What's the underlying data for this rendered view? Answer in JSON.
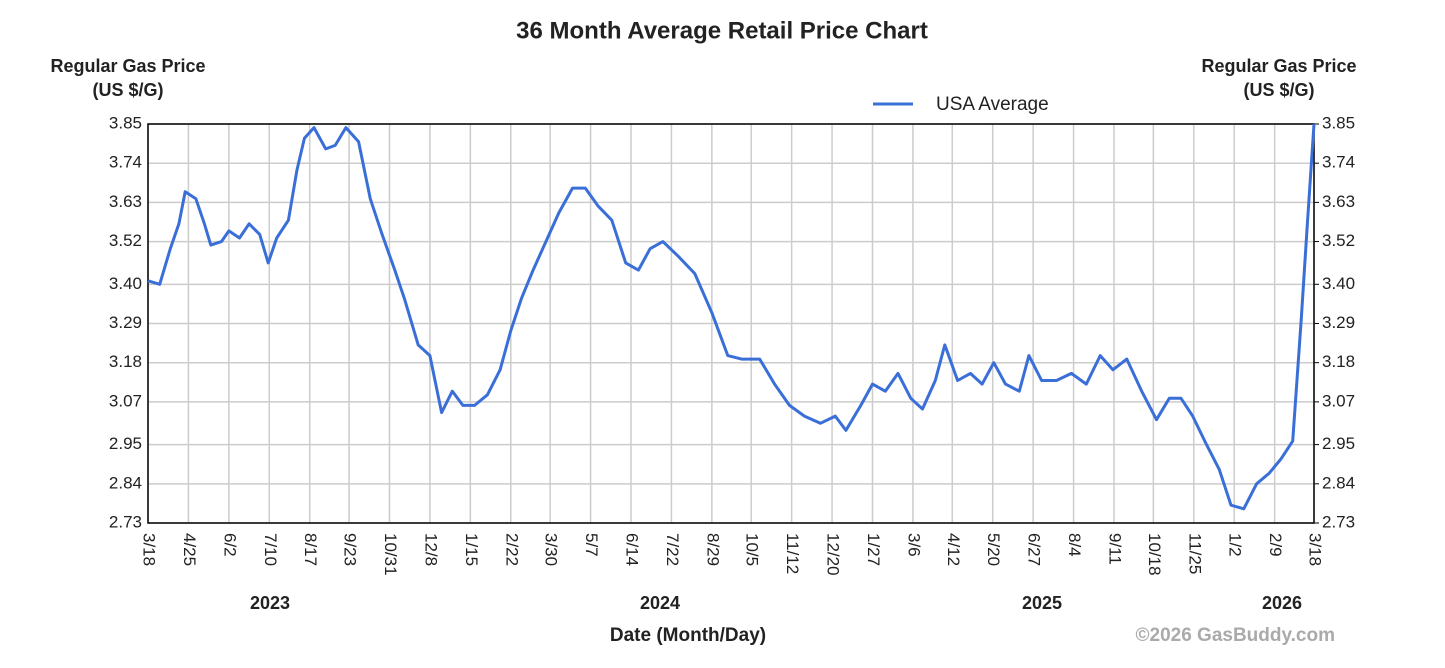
{
  "chart_data": {
    "type": "line",
    "title": "36 Month Average Retail Price Chart",
    "y_label": "Regular Gas Price (US $/G)",
    "y2_label": "Regular Gas Price (US $/G)",
    "x_label": "Date (Month/Day)",
    "watermark": "©2026 GasBuddy.com",
    "legend": "top",
    "grid": true,
    "year_labels": [
      "2023",
      "2024",
      "2025",
      "2026"
    ],
    "xlim": [
      "2023-03-18",
      "2026-03-18"
    ],
    "xticks": [
      {
        "value": "2023-03-18",
        "label": "3/18"
      },
      {
        "value": "2023-04-25",
        "label": "4/25"
      },
      {
        "value": "2023-06-02",
        "label": "6/2"
      },
      {
        "value": "2023-07-10",
        "label": "7/10"
      },
      {
        "value": "2023-08-17",
        "label": "8/17"
      },
      {
        "value": "2023-09-23",
        "label": "9/23"
      },
      {
        "value": "2023-10-31",
        "label": "10/31"
      },
      {
        "value": "2023-12-08",
        "label": "12/8"
      },
      {
        "value": "2024-01-15",
        "label": "1/15"
      },
      {
        "value": "2024-02-22",
        "label": "2/22"
      },
      {
        "value": "2024-03-30",
        "label": "3/30"
      },
      {
        "value": "2024-05-07",
        "label": "5/7"
      },
      {
        "value": "2024-06-14",
        "label": "6/14"
      },
      {
        "value": "2024-07-22",
        "label": "7/22"
      },
      {
        "value": "2024-08-29",
        "label": "8/29"
      },
      {
        "value": "2024-10-05",
        "label": "10/5"
      },
      {
        "value": "2024-11-12",
        "label": "11/12"
      },
      {
        "value": "2024-12-20",
        "label": "12/20"
      },
      {
        "value": "2025-01-27",
        "label": "1/27"
      },
      {
        "value": "2025-03-06",
        "label": "3/6"
      },
      {
        "value": "2025-04-12",
        "label": "4/12"
      },
      {
        "value": "2025-05-20",
        "label": "5/20"
      },
      {
        "value": "2025-06-27",
        "label": "6/27"
      },
      {
        "value": "2025-08-04",
        "label": "8/4"
      },
      {
        "value": "2025-09-11",
        "label": "9/11"
      },
      {
        "value": "2025-10-18",
        "label": "10/18"
      },
      {
        "value": "2025-11-25",
        "label": "11/25"
      },
      {
        "value": "2026-01-02",
        "label": "1/2"
      },
      {
        "value": "2026-02-09",
        "label": "2/9"
      },
      {
        "value": "2026-03-18",
        "label": "3/18"
      }
    ],
    "ylim": [
      2.73,
      3.85
    ],
    "yticks": [
      2.73,
      2.84,
      2.95,
      3.07,
      3.18,
      3.29,
      {
        "value": 3.4,
        "label": "3.40"
      },
      3.52,
      3.63,
      3.74,
      3.85
    ],
    "y2lim": [
      2.73,
      3.85
    ],
    "y2ticks": [
      2.73,
      2.84,
      2.95,
      3.07,
      3.18,
      3.29,
      {
        "value": 3.4,
        "label": "3.40"
      },
      3.52,
      3.63,
      3.74,
      3.85
    ],
    "x": [
      "2023-03-18",
      "2023-03-29",
      "2023-04-08",
      "2023-04-16",
      "2023-04-22",
      "2023-05-02",
      "2023-05-10",
      "2023-05-16",
      "2023-05-26",
      "2023-06-02",
      "2023-06-12",
      "2023-06-21",
      "2023-07-01",
      "2023-07-09",
      "2023-07-17",
      "2023-07-28",
      "2023-08-05",
      "2023-08-12",
      "2023-08-21",
      "2023-09-01",
      "2023-09-10",
      "2023-09-20",
      "2023-10-02",
      "2023-10-13",
      "2023-10-24",
      "2023-11-05",
      "2023-11-14",
      "2023-11-27",
      "2023-12-08",
      "2023-12-19",
      "2023-12-29",
      "2024-01-08",
      "2024-01-19",
      "2024-01-31",
      "2024-02-12",
      "2024-02-22",
      "2024-03-03",
      "2024-03-14",
      "2024-03-26",
      "2024-04-07",
      "2024-04-20",
      "2024-05-02",
      "2024-05-14",
      "2024-05-27",
      "2024-06-09",
      "2024-06-21",
      "2024-07-02",
      "2024-07-14",
      "2024-07-28",
      "2024-08-13",
      "2024-08-29",
      "2024-09-13",
      "2024-09-26",
      "2024-10-13",
      "2024-10-27",
      "2024-11-10",
      "2024-11-24",
      "2024-12-09",
      "2024-12-23",
      "2025-01-02",
      "2025-01-16",
      "2025-01-27",
      "2025-02-08",
      "2025-02-20",
      "2025-03-04",
      "2025-03-15",
      "2025-03-27",
      "2025-04-05",
      "2025-04-17",
      "2025-04-29",
      "2025-05-10",
      "2025-05-21",
      "2025-06-01",
      "2025-06-14",
      "2025-06-23",
      "2025-07-05",
      "2025-07-19",
      "2025-08-02",
      "2025-08-16",
      "2025-08-29",
      "2025-09-10",
      "2025-09-23",
      "2025-10-07",
      "2025-10-21",
      "2025-11-02",
      "2025-11-13",
      "2025-11-24",
      "2025-12-07",
      "2025-12-19",
      "2025-12-30",
      "2026-01-11",
      "2026-01-23",
      "2026-02-04",
      "2026-02-15",
      "2026-02-26",
      "2026-03-06",
      "2026-03-12",
      "2026-03-18"
    ],
    "series": [
      {
        "name": "USA Average",
        "color": "#3a6fd8",
        "values": [
          3.41,
          3.4,
          3.5,
          3.57,
          3.66,
          3.64,
          3.57,
          3.51,
          3.52,
          3.55,
          3.53,
          3.57,
          3.54,
          3.46,
          3.53,
          3.58,
          3.72,
          3.81,
          3.84,
          3.78,
          3.79,
          3.84,
          3.8,
          3.64,
          3.54,
          3.44,
          3.36,
          3.23,
          3.2,
          3.04,
          3.1,
          3.06,
          3.06,
          3.09,
          3.16,
          3.27,
          3.36,
          3.44,
          3.52,
          3.6,
          3.67,
          3.67,
          3.62,
          3.58,
          3.46,
          3.44,
          3.5,
          3.52,
          3.48,
          3.43,
          3.32,
          3.2,
          3.19,
          3.19,
          3.12,
          3.06,
          3.03,
          3.01,
          3.03,
          2.99,
          3.06,
          3.12,
          3.1,
          3.15,
          3.08,
          3.05,
          3.13,
          3.23,
          3.13,
          3.15,
          3.12,
          3.18,
          3.12,
          3.1,
          3.2,
          3.13,
          3.13,
          3.15,
          3.12,
          3.2,
          3.16,
          3.19,
          3.1,
          3.02,
          3.08,
          3.08,
          3.03,
          2.95,
          2.88,
          2.78,
          2.77,
          2.84,
          2.87,
          2.91,
          2.96,
          3.3,
          3.58,
          3.85
        ]
      }
    ]
  }
}
